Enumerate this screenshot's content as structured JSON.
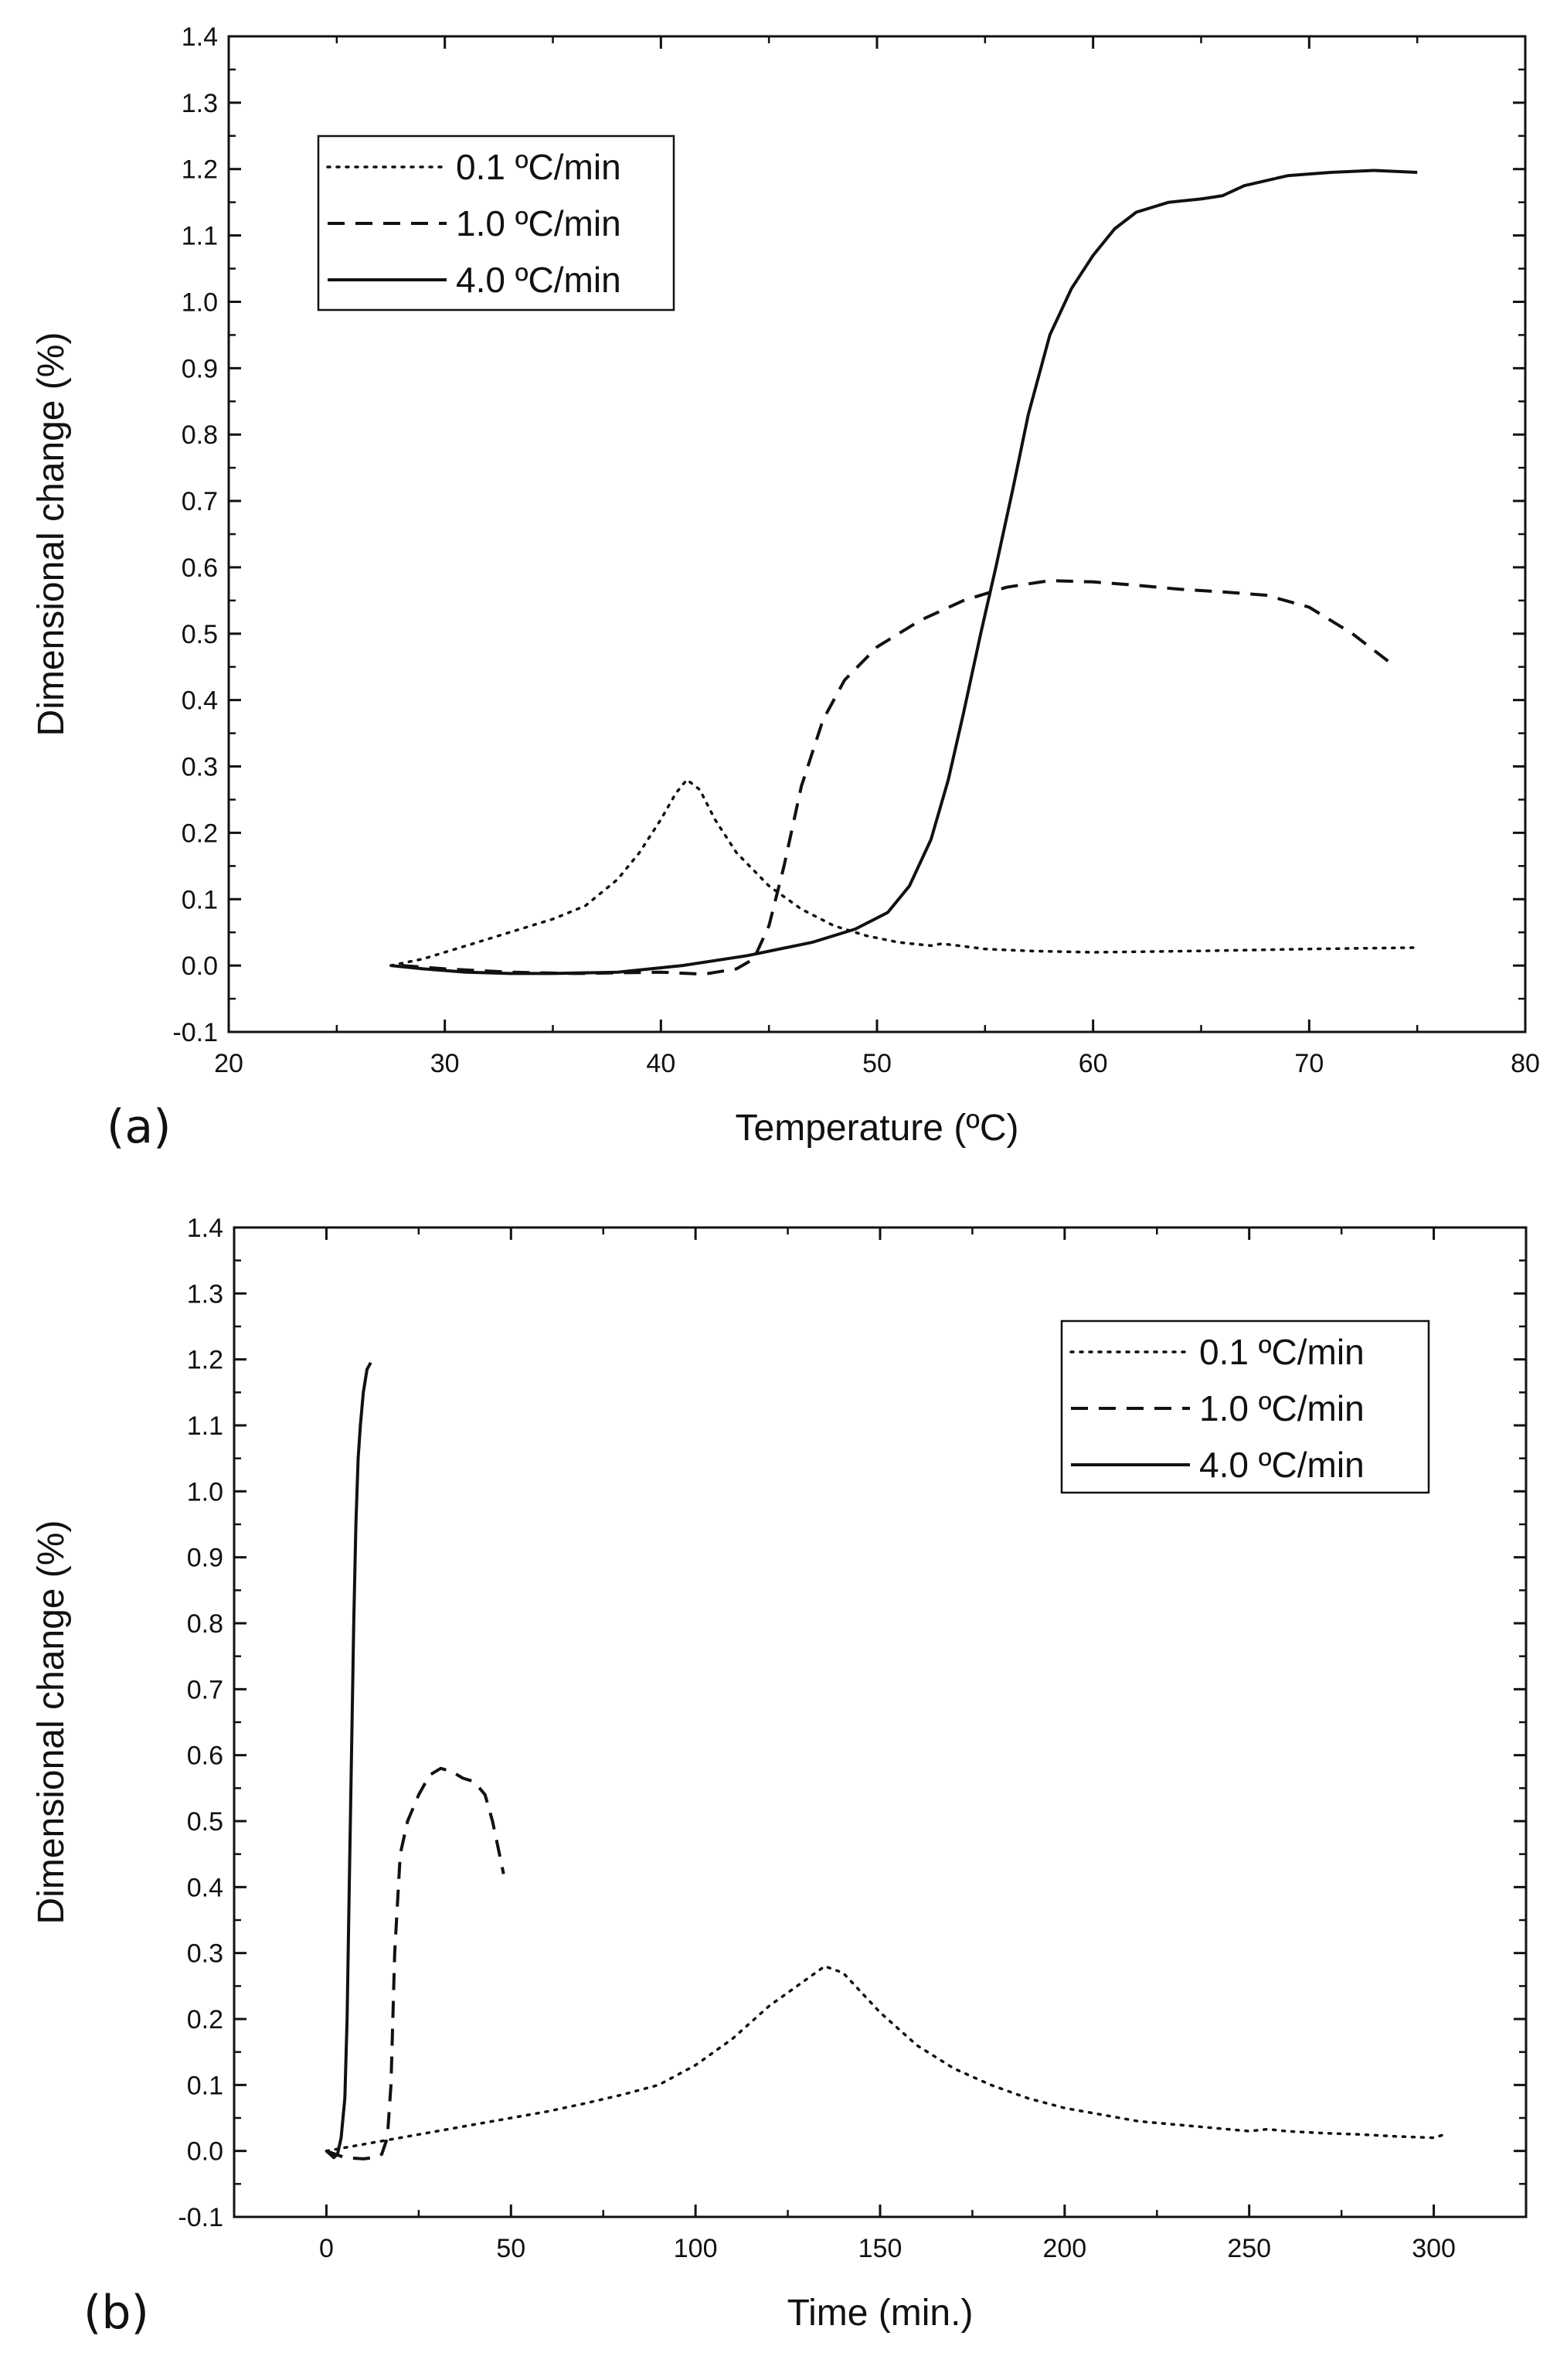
{
  "figure_title": "",
  "chart_data": [
    {
      "type": "line",
      "panel_label": "(a)",
      "xlabel": "Temperature (ºC)",
      "ylabel": "Dimensional change (%)",
      "xlim": [
        20,
        80
      ],
      "ylim": [
        -0.1,
        1.4
      ],
      "xticks": [
        20,
        30,
        40,
        50,
        60,
        70,
        80
      ],
      "yticks": [
        -0.1,
        0.0,
        0.1,
        0.2,
        0.3,
        0.4,
        0.5,
        0.6,
        0.7,
        0.8,
        0.9,
        1.0,
        1.1,
        1.2,
        1.3,
        1.4
      ],
      "tick_labels_x": [
        "20",
        "30",
        "40",
        "50",
        "60",
        "70",
        "80"
      ],
      "tick_labels_y": [
        "-0.1",
        "0.0",
        "0.1",
        "0.2",
        "0.3",
        "0.4",
        "0.5",
        "0.6",
        "0.7",
        "0.8",
        "0.9",
        "1.0",
        "1.1",
        "1.2",
        "1.3",
        "1.4"
      ],
      "legend_position": "top-left",
      "grid": false,
      "series": [
        {
          "name": "0.1 ºC/min",
          "style": "dotted",
          "x": [
            27.5,
            29,
            30.5,
            32,
            33.5,
            35,
            36.5,
            38,
            39,
            40,
            40.7,
            41.2,
            41.8,
            42.5,
            43.5,
            45,
            46.5,
            48,
            49.5,
            51,
            52.5,
            53,
            55,
            57,
            60,
            65,
            70,
            75
          ],
          "y": [
            0.0,
            0.01,
            0.025,
            0.04,
            0.055,
            0.07,
            0.09,
            0.13,
            0.17,
            0.22,
            0.26,
            0.28,
            0.265,
            0.22,
            0.17,
            0.12,
            0.085,
            0.06,
            0.045,
            0.035,
            0.03,
            0.033,
            0.025,
            0.022,
            0.02,
            0.022,
            0.025,
            0.027
          ]
        },
        {
          "name": "1.0 ºC/min",
          "style": "dashed",
          "x": [
            28,
            30,
            33,
            36,
            40,
            42,
            43.5,
            44.3,
            45,
            45.7,
            46.5,
            47.5,
            48.5,
            50,
            52,
            54,
            56,
            58,
            60,
            62,
            64,
            66,
            68,
            70,
            72,
            73,
            74
          ],
          "y": [
            0.0,
            -0.005,
            -0.01,
            -0.012,
            -0.01,
            -0.013,
            -0.005,
            0.01,
            0.06,
            0.15,
            0.27,
            0.37,
            0.43,
            0.48,
            0.52,
            0.55,
            0.57,
            0.58,
            0.578,
            0.573,
            0.567,
            0.563,
            0.558,
            0.54,
            0.5,
            0.475,
            0.45
          ]
        },
        {
          "name": "4.0 ºC/min",
          "style": "solid",
          "x": [
            27.5,
            29,
            31,
            33,
            35,
            38,
            41,
            44,
            47,
            49,
            50.5,
            51.5,
            52.5,
            53.3,
            54,
            54.8,
            55.5,
            56.3,
            57,
            58,
            59,
            60,
            61,
            62,
            63.5,
            65,
            66,
            67,
            69,
            71,
            73,
            75
          ],
          "y": [
            0.0,
            -0.005,
            -0.01,
            -0.012,
            -0.012,
            -0.01,
            0.0,
            0.015,
            0.035,
            0.055,
            0.08,
            0.12,
            0.19,
            0.28,
            0.38,
            0.5,
            0.6,
            0.72,
            0.83,
            0.95,
            1.02,
            1.07,
            1.11,
            1.135,
            1.15,
            1.155,
            1.16,
            1.175,
            1.19,
            1.195,
            1.198,
            1.195
          ]
        }
      ]
    },
    {
      "type": "line",
      "panel_label": "(b)",
      "xlabel": "Time (min.)",
      "ylabel": "Dimensional change (%)",
      "xlim": [
        -25,
        325
      ],
      "ylim": [
        -0.1,
        1.4
      ],
      "xticks": [
        0,
        50,
        100,
        150,
        200,
        250,
        300
      ],
      "yticks": [
        -0.1,
        0.0,
        0.1,
        0.2,
        0.3,
        0.4,
        0.5,
        0.6,
        0.7,
        0.8,
        0.9,
        1.0,
        1.1,
        1.2,
        1.3,
        1.4
      ],
      "tick_labels_x": [
        "0",
        "50",
        "100",
        "150",
        "200",
        "250",
        "300"
      ],
      "tick_labels_y": [
        "-0.1",
        "0.0",
        "0.1",
        "0.2",
        "0.3",
        "0.4",
        "0.5",
        "0.6",
        "0.7",
        "0.8",
        "0.9",
        "1.0",
        "1.1",
        "1.2",
        "1.3",
        "1.4"
      ],
      "legend_position": "top-right",
      "grid": false,
      "series": [
        {
          "name": "0.1 ºC/min",
          "style": "dotted",
          "x": [
            0,
            10,
            20,
            30,
            40,
            50,
            60,
            70,
            80,
            90,
            100,
            110,
            120,
            130,
            135,
            140,
            150,
            160,
            170,
            180,
            190,
            200,
            210,
            220,
            230,
            240,
            250,
            255,
            260,
            270,
            280,
            290,
            300,
            303
          ],
          "y": [
            0.0,
            0.01,
            0.02,
            0.03,
            0.04,
            0.05,
            0.06,
            0.072,
            0.085,
            0.1,
            0.13,
            0.17,
            0.22,
            0.26,
            0.28,
            0.27,
            0.21,
            0.16,
            0.125,
            0.1,
            0.08,
            0.065,
            0.055,
            0.045,
            0.04,
            0.035,
            0.03,
            0.033,
            0.03,
            0.027,
            0.025,
            0.022,
            0.02,
            0.025
          ]
        },
        {
          "name": "1.0 ºC/min",
          "style": "dashed",
          "x": [
            0,
            5,
            10,
            13,
            15,
            16.5,
            17.5,
            18.5,
            20,
            22,
            25,
            28,
            31,
            34,
            37,
            40,
            43,
            45,
            46.5,
            48
          ],
          "y": [
            0.0,
            -0.01,
            -0.012,
            -0.01,
            -0.005,
            0.02,
            0.1,
            0.3,
            0.45,
            0.5,
            0.54,
            0.57,
            0.58,
            0.575,
            0.565,
            0.56,
            0.54,
            0.5,
            0.46,
            0.42
          ]
        },
        {
          "name": "4.0 ºC/min",
          "style": "solid",
          "x": [
            0,
            1,
            2,
            3,
            4,
            5,
            5.6,
            6.2,
            6.8,
            7.4,
            8,
            8.6,
            9.2,
            10,
            11,
            12
          ],
          "y": [
            0.0,
            -0.005,
            -0.01,
            -0.005,
            0.02,
            0.08,
            0.2,
            0.4,
            0.6,
            0.8,
            0.95,
            1.05,
            1.1,
            1.15,
            1.185,
            1.195
          ]
        }
      ]
    }
  ]
}
